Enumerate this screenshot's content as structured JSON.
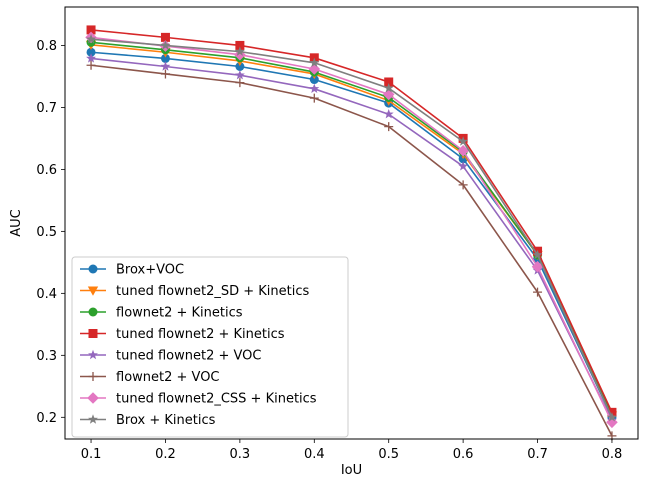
{
  "chart_data": {
    "type": "line",
    "title": "",
    "xlabel": "IoU",
    "ylabel": "AUC",
    "x": [
      0.1,
      0.2,
      0.3,
      0.4,
      0.5,
      0.6,
      0.7,
      0.8
    ],
    "xticks": [
      "0.1",
      "0.2",
      "0.3",
      "0.4",
      "0.5",
      "0.6",
      "0.7",
      "0.8"
    ],
    "yticks": [
      "0.2",
      "0.3",
      "0.4",
      "0.5",
      "0.6",
      "0.7",
      "0.8"
    ],
    "xlim": [
      0.065,
      0.835
    ],
    "ylim": [
      0.165,
      0.862
    ],
    "grid": false,
    "legend_position": "lower-left",
    "series": [
      {
        "name": "Brox+VOC",
        "color": "#1f77b4",
        "marker": "circle",
        "values": [
          0.789,
          0.779,
          0.766,
          0.745,
          0.707,
          0.617,
          0.455,
          0.2
        ]
      },
      {
        "name": "tuned flownet2_SD + Kinetics",
        "color": "#ff7f0e",
        "marker": "triangle-down",
        "values": [
          0.801,
          0.789,
          0.775,
          0.754,
          0.711,
          0.625,
          0.462,
          0.203
        ]
      },
      {
        "name": "flownet2 + Kinetics",
        "color": "#2ca02c",
        "marker": "circle",
        "values": [
          0.805,
          0.793,
          0.78,
          0.757,
          0.716,
          0.628,
          0.462,
          0.205
        ]
      },
      {
        "name": "tuned flownet2 + Kinetics",
        "color": "#d62728",
        "marker": "square",
        "values": [
          0.825,
          0.813,
          0.8,
          0.78,
          0.741,
          0.65,
          0.468,
          0.208
        ]
      },
      {
        "name": "tuned flownet2 + VOC",
        "color": "#9467bd",
        "marker": "star",
        "values": [
          0.779,
          0.766,
          0.752,
          0.73,
          0.689,
          0.605,
          0.437,
          0.195
        ]
      },
      {
        "name": "flownet2 + VOC",
        "color": "#8c564b",
        "marker": "plus",
        "values": [
          0.768,
          0.754,
          0.74,
          0.715,
          0.669,
          0.575,
          0.402,
          0.17
        ]
      },
      {
        "name": "tuned flownet2_CSS + Kinetics",
        "color": "#e377c2",
        "marker": "diamond",
        "values": [
          0.813,
          0.799,
          0.785,
          0.762,
          0.721,
          0.63,
          0.443,
          0.192
        ]
      },
      {
        "name": "Brox + Kinetics",
        "color": "#7f7f7f",
        "marker": "star",
        "values": [
          0.81,
          0.8,
          0.79,
          0.772,
          0.731,
          0.645,
          0.462,
          0.2
        ]
      }
    ]
  }
}
